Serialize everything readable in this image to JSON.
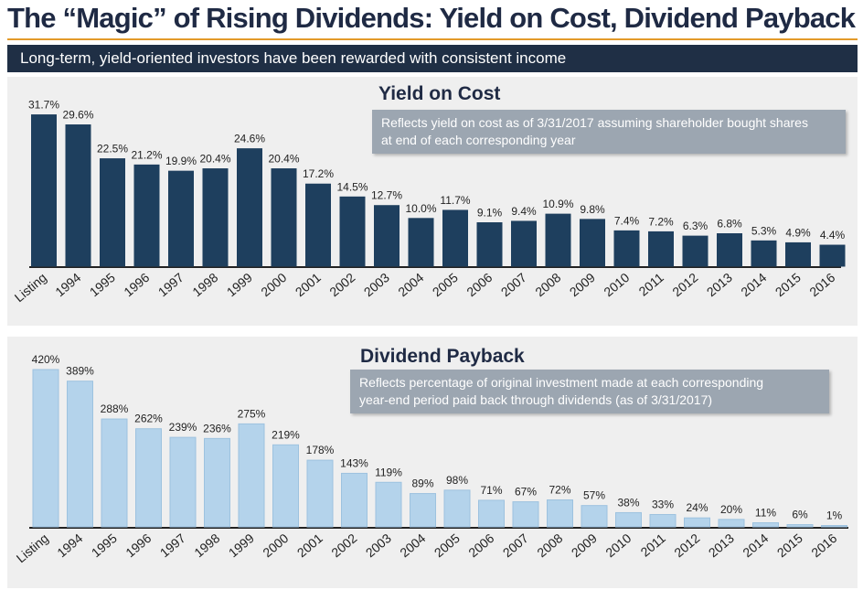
{
  "header": {
    "title": "The “Magic” of Rising Dividends: Yield on Cost, Dividend Payback",
    "subtitle": "Long-term, yield-oriented investors have been rewarded with consistent income"
  },
  "colors": {
    "title": "#1f2a44",
    "rule": "#e39a2a",
    "subtitle_bg": "#1f2f45",
    "panel_bg": "#efefef",
    "yield_bar": "#1e3f5e",
    "payback_bar": "#b4d3eb",
    "note_bg": "#9ca6b1"
  },
  "chart_data": [
    {
      "type": "bar",
      "title": "Yield on Cost",
      "note_lines": [
        "Reflects yield on cost as of 3/31/2017 assuming shareholder bought shares",
        "at end of each corresponding year"
      ],
      "categories": [
        "Listing",
        "1994",
        "1995",
        "1996",
        "1997",
        "1998",
        "1999",
        "2000",
        "2001",
        "2002",
        "2003",
        "2004",
        "2005",
        "2006",
        "2007",
        "2008",
        "2009",
        "2010",
        "2011",
        "2012",
        "2013",
        "2014",
        "2015",
        "2016"
      ],
      "values": [
        31.7,
        29.6,
        22.5,
        21.2,
        19.9,
        20.4,
        24.6,
        20.4,
        17.2,
        14.5,
        12.7,
        10.0,
        11.7,
        9.1,
        9.4,
        10.9,
        9.8,
        7.4,
        7.2,
        6.3,
        6.8,
        5.3,
        4.9,
        4.4
      ],
      "value_labels": [
        "31.7%",
        "29.6%",
        "22.5%",
        "21.2%",
        "19.9%",
        "20.4%",
        "24.6%",
        "20.4%",
        "17.2%",
        "14.5%",
        "12.7%",
        "10.0%",
        "11.7%",
        "9.1%",
        "9.4%",
        "10.9%",
        "9.8%",
        "7.4%",
        "7.2%",
        "6.3%",
        "6.8%",
        "5.3%",
        "4.9%",
        "4.4%"
      ],
      "unit": "%",
      "ylim": [
        0,
        32
      ],
      "xlabel": "",
      "ylabel": ""
    },
    {
      "type": "bar",
      "title": "Dividend Payback",
      "note_lines": [
        "Reflects percentage of original investment made at each corresponding",
        "year-end period paid back through dividends (as of 3/31/2017)"
      ],
      "categories": [
        "Listing",
        "1994",
        "1995",
        "1996",
        "1997",
        "1998",
        "1999",
        "2000",
        "2001",
        "2002",
        "2003",
        "2004",
        "2005",
        "2006",
        "2007",
        "2008",
        "2009",
        "2010",
        "2011",
        "2012",
        "2013",
        "2014",
        "2015",
        "2016"
      ],
      "values": [
        420,
        389,
        288,
        262,
        239,
        236,
        275,
        219,
        178,
        143,
        119,
        89,
        98,
        71,
        67,
        72,
        57,
        38,
        33,
        24,
        20,
        11,
        6,
        1
      ],
      "value_labels": [
        "420%",
        "389%",
        "288%",
        "262%",
        "239%",
        "236%",
        "275%",
        "219%",
        "178%",
        "143%",
        "119%",
        "89%",
        "98%",
        "71%",
        "67%",
        "72%",
        "57%",
        "38%",
        "33%",
        "24%",
        "20%",
        "11%",
        "6%",
        "1%"
      ],
      "unit": "%",
      "ylim": [
        0,
        420
      ],
      "xlabel": "",
      "ylabel": ""
    }
  ]
}
